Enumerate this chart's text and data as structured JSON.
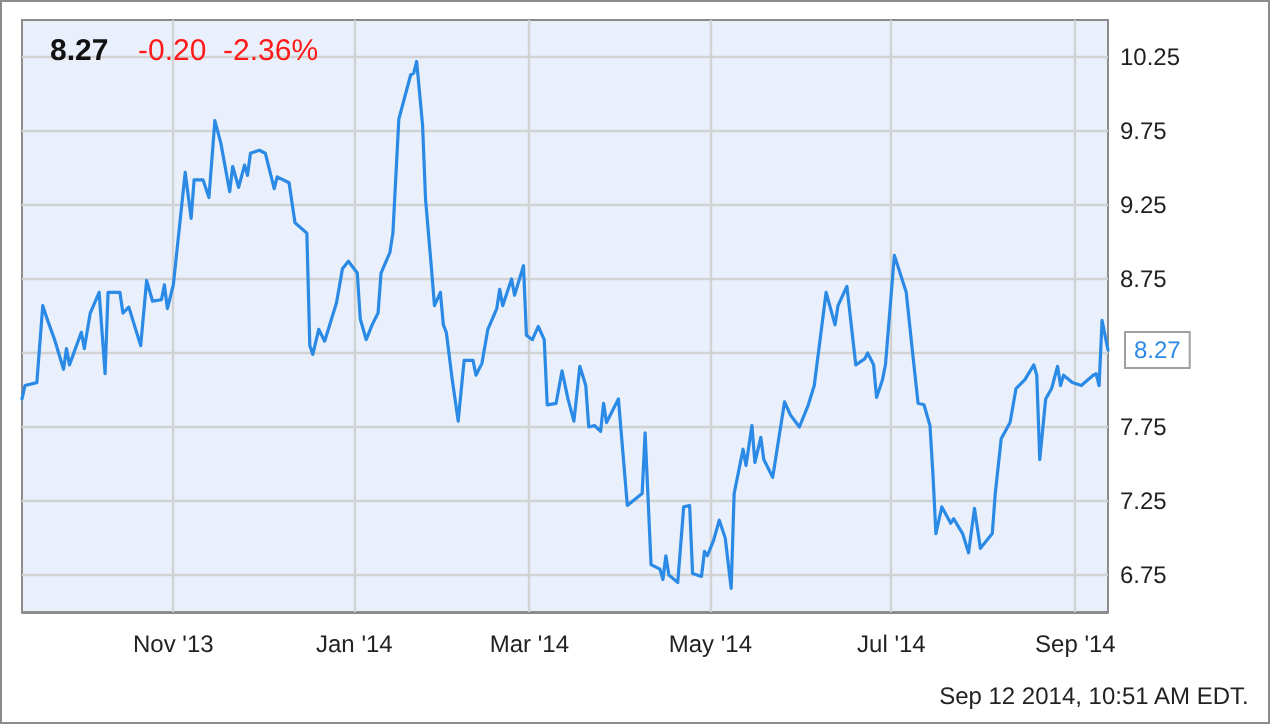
{
  "chart_data": {
    "type": "line",
    "title": "8.27",
    "subtitle": "-0.20  -2.36%",
    "x": [
      "2013-09-11",
      "2013-09-12",
      "2013-09-16",
      "2013-09-18",
      "2013-09-20",
      "2013-09-22",
      "2013-09-25",
      "2013-09-26",
      "2013-09-27",
      "2013-10-01",
      "2013-10-02",
      "2013-10-04",
      "2013-10-07",
      "2013-10-09",
      "2013-10-10",
      "2013-10-14",
      "2013-10-15",
      "2013-10-17",
      "2013-10-21",
      "2013-10-23",
      "2013-10-25",
      "2013-10-28",
      "2013-10-29",
      "2013-10-30",
      "2013-11-01",
      "2013-11-05",
      "2013-11-07",
      "2013-11-08",
      "2013-11-11",
      "2013-11-13",
      "2013-11-15",
      "2013-11-17",
      "2013-11-20",
      "2013-11-21",
      "2013-11-23",
      "2013-11-25",
      "2013-11-26",
      "2013-11-27",
      "2013-11-30",
      "2013-12-02",
      "2013-12-05",
      "2013-12-06",
      "2013-12-10",
      "2013-12-12",
      "2013-12-16",
      "2013-12-17",
      "2013-12-18",
      "2013-12-20",
      "2013-12-22",
      "2013-12-26",
      "2013-12-28",
      "2013-12-30",
      "2014-01-02",
      "2014-01-03",
      "2014-01-05",
      "2014-01-07",
      "2014-01-09",
      "2014-01-10",
      "2014-01-13",
      "2014-01-14",
      "2014-01-16",
      "2014-01-20",
      "2014-01-21",
      "2014-01-22",
      "2014-01-24",
      "2014-01-25",
      "2014-01-27",
      "2014-01-28",
      "2014-01-30",
      "2014-01-31",
      "2014-02-01",
      "2014-02-03",
      "2014-02-05",
      "2014-02-07",
      "2014-02-10",
      "2014-02-11",
      "2014-02-13",
      "2014-02-15",
      "2014-02-18",
      "2014-02-19",
      "2014-02-20",
      "2014-02-23",
      "2014-02-24",
      "2014-02-27",
      "2014-02-28",
      "2014-03-02",
      "2014-03-04",
      "2014-03-06",
      "2014-03-07",
      "2014-03-10",
      "2014-03-12",
      "2014-03-14",
      "2014-03-16",
      "2014-03-18",
      "2014-03-20",
      "2014-03-21",
      "2014-03-23",
      "2014-03-25",
      "2014-03-26",
      "2014-03-27",
      "2014-03-31",
      "2014-04-03",
      "2014-04-08",
      "2014-04-09",
      "2014-04-11",
      "2014-04-14",
      "2014-04-15",
      "2014-04-16",
      "2014-04-17",
      "2014-04-20",
      "2014-04-22",
      "2014-04-24",
      "2014-04-25",
      "2014-04-28",
      "2014-04-29",
      "2014-04-30",
      "2014-05-02",
      "2014-05-04",
      "2014-05-06",
      "2014-05-08",
      "2014-05-09",
      "2014-05-12",
      "2014-05-13",
      "2014-05-15",
      "2014-05-16",
      "2014-05-18",
      "2014-05-19",
      "2014-05-22",
      "2014-05-26",
      "2014-05-28",
      "2014-05-31",
      "2014-06-03",
      "2014-06-05",
      "2014-06-09",
      "2014-06-12",
      "2014-06-13",
      "2014-06-16",
      "2014-06-19",
      "2014-06-22",
      "2014-06-23",
      "2014-06-25",
      "2014-06-26",
      "2014-06-28",
      "2014-06-29",
      "2014-07-02",
      "2014-07-06",
      "2014-07-08",
      "2014-07-10",
      "2014-07-12",
      "2014-07-14",
      "2014-07-15",
      "2014-07-16",
      "2014-07-18",
      "2014-07-21",
      "2014-07-22",
      "2014-07-25",
      "2014-07-27",
      "2014-07-29",
      "2014-07-31",
      "2014-08-04",
      "2014-08-05",
      "2014-08-07",
      "2014-08-10",
      "2014-08-12",
      "2014-08-14",
      "2014-08-15",
      "2014-08-18",
      "2014-08-19",
      "2014-08-20",
      "2014-08-22",
      "2014-08-24",
      "2014-08-26",
      "2014-08-27",
      "2014-08-28",
      "2014-08-31",
      "2014-09-03",
      "2014-09-07",
      "2014-09-08",
      "2014-09-09",
      "2014-09-10",
      "2014-09-12"
    ],
    "series": [
      {
        "color": "#2a8ae6",
        "values": [
          7.94,
          8.03,
          8.05,
          8.57,
          8.45,
          8.34,
          8.14,
          8.28,
          8.17,
          8.39,
          8.28,
          8.52,
          8.66,
          8.11,
          8.66,
          8.66,
          8.52,
          8.56,
          8.3,
          8.74,
          8.6,
          8.61,
          8.71,
          8.55,
          8.71,
          9.47,
          9.16,
          9.42,
          9.42,
          9.3,
          9.82,
          9.67,
          9.34,
          9.51,
          9.37,
          9.52,
          9.45,
          9.6,
          9.62,
          9.6,
          9.36,
          9.44,
          9.4,
          9.13,
          9.06,
          8.3,
          8.24,
          8.41,
          8.33,
          8.59,
          8.82,
          8.87,
          8.79,
          8.48,
          8.34,
          8.44,
          8.52,
          8.79,
          8.93,
          9.06,
          9.83,
          10.13,
          10.14,
          10.22,
          9.79,
          9.29,
          8.82,
          8.57,
          8.66,
          8.44,
          8.39,
          8.07,
          7.79,
          8.2,
          8.2,
          8.1,
          8.18,
          8.41,
          8.55,
          8.68,
          8.57,
          8.75,
          8.64,
          8.84,
          8.37,
          8.34,
          8.43,
          8.34,
          7.9,
          7.91,
          8.13,
          7.94,
          7.79,
          8.16,
          8.03,
          7.75,
          7.76,
          7.72,
          7.91,
          7.78,
          7.94,
          7.22,
          7.3,
          7.71,
          6.82,
          6.79,
          6.72,
          6.88,
          6.75,
          6.7,
          7.21,
          7.22,
          6.76,
          6.74,
          6.91,
          6.88,
          6.98,
          7.12,
          7.0,
          6.66,
          7.3,
          7.6,
          7.49,
          7.76,
          7.51,
          7.68,
          7.53,
          7.41,
          7.92,
          7.83,
          7.75,
          7.9,
          8.03,
          8.66,
          8.44,
          8.57,
          8.7,
          8.17,
          8.21,
          8.25,
          8.17,
          7.95,
          8.07,
          8.17,
          8.91,
          8.66,
          8.28,
          7.91,
          7.9,
          7.76,
          7.43,
          7.03,
          7.21,
          7.1,
          7.13,
          7.03,
          6.9,
          7.2,
          6.93,
          7.03,
          7.3,
          7.67,
          7.78,
          8.01,
          8.05,
          8.07,
          8.17,
          8.1,
          7.53,
          7.94,
          8.01,
          8.16,
          8.03,
          8.1,
          8.05,
          8.03,
          8.1,
          8.11,
          8.03,
          8.47,
          8.27
        ]
      }
    ],
    "xlim": [
      "2013-09-11",
      "2014-09-12"
    ],
    "xticks": [
      {
        "value": "2013-11-01",
        "label": "Nov '13"
      },
      {
        "value": "2014-01-01",
        "label": "Jan '14"
      },
      {
        "value": "2014-03-01",
        "label": "Mar '14"
      },
      {
        "value": "2014-05-01",
        "label": "May '14"
      },
      {
        "value": "2014-07-01",
        "label": "Jul '14"
      },
      {
        "value": "2014-09-01",
        "label": "Sep '14"
      }
    ],
    "ylim": [
      6.5,
      10.5
    ],
    "yticks": [
      6.75,
      7.25,
      7.75,
      {
        "value": 8.25,
        "label": null
      },
      8.75,
      9.25,
      9.75,
      10.25
    ],
    "grid": true,
    "marker": "none",
    "line_style": "solid",
    "annotations": [
      {
        "text": "8.27",
        "x": "2014-09-12",
        "y": 8.27
      },
      "Sep 12 2014, 10:51 AM EDT."
    ]
  }
}
